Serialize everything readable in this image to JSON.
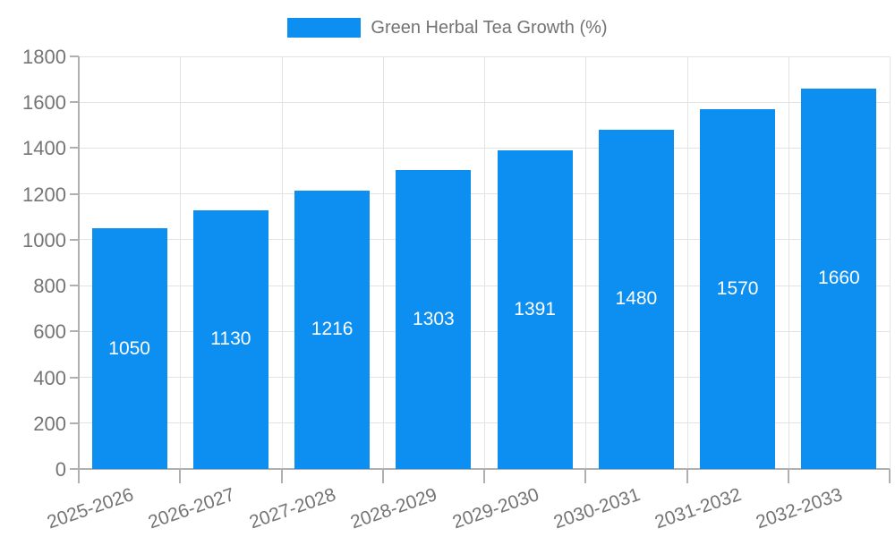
{
  "legend": {
    "label": "Green Herbal Tea Growth (%)"
  },
  "colors": {
    "bar": "#0d8ff2",
    "bar_value_text": "#ffffff",
    "axis_text": "#757575",
    "legend_text": "#737373",
    "gridline": "#e3e3e3",
    "axis_line": "#b0b0b0"
  },
  "chart_data": {
    "type": "bar",
    "title": "Green Herbal Tea Growth (%)",
    "categories": [
      "2025-2026",
      "2026-2027",
      "2027-2028",
      "2028-2029",
      "2029-2030",
      "2030-2031",
      "2031-2032",
      "2032-2033"
    ],
    "values": [
      1050,
      1130,
      1216,
      1303,
      1391,
      1480,
      1570,
      1660
    ],
    "value_labels": [
      "1050",
      "1130",
      "1216",
      "1303",
      "1391",
      "1480",
      "1570",
      "1660"
    ],
    "xlabel": "",
    "ylabel": "",
    "ylim": [
      0,
      1800
    ],
    "ytick_step": 200,
    "yticks": [
      "0",
      "200",
      "400",
      "600",
      "800",
      "1000",
      "1200",
      "1400",
      "1600",
      "1800"
    ],
    "grid": true,
    "legend_position": "top-center",
    "bar_value_labels_inside": true,
    "xtick_label_rotation_deg": -19
  }
}
